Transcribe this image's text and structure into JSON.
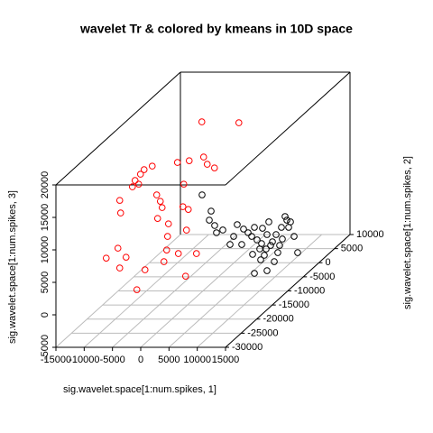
{
  "chart_data": {
    "type": "scatter3d",
    "title": "wavelet Tr & colored by kmeans in 10D space",
    "x_label": "sig.wavelet.space[1:num.spikes, 1]",
    "y_label": "sig.wavelet.space[1:num.spikes, 2]",
    "z_label": "sig.wavelet.space[1:num.spikes, 3]",
    "xlim": [
      -15000,
      15000
    ],
    "ylim": [
      -30000,
      10000
    ],
    "zlim": [
      -5000,
      20000
    ],
    "xticks": [
      -15000,
      -10000,
      -5000,
      0,
      5000,
      10000,
      15000
    ],
    "yticks": [
      -30000,
      -25000,
      -20000,
      -15000,
      -10000,
      -5000,
      0,
      5000,
      10000
    ],
    "zticks": [
      -5000,
      0,
      5000,
      10000,
      15000,
      20000
    ],
    "grid": true,
    "series": [
      {
        "color": "#ff0000",
        "x": [
          2550,
          9100,
          -1760,
          320,
          2870,
          3510,
          4790,
          -6220,
          -7660,
          -8300,
          -9260,
          -8620,
          -9730,
          -5430,
          -4790,
          -640,
          160,
          -11970,
          -11810,
          -4470,
          -5270,
          -800,
          -160,
          -3350,
          -3510,
          -12290,
          -14360,
          -10850,
          -11970,
          -3670,
          -4150,
          -1600,
          1600,
          -320,
          -8940,
          -7500
        ],
        "y": [
          -15000,
          -15000,
          -15000,
          -15000,
          -15000,
          -15000,
          -15000,
          -15000,
          -15000,
          -15000,
          -15000,
          -15000,
          -15000,
          -15000,
          -15000,
          -15000,
          -15000,
          -15000,
          -15000,
          -15000,
          -15000,
          -15000,
          -15000,
          -15000,
          -15000,
          -15000,
          -15000,
          -15000,
          -15000,
          -15000,
          -15000,
          -15000,
          -15000,
          -15000,
          -15000,
          -15000
        ],
        "z": [
          23200,
          23060,
          16950,
          17220,
          17780,
          16670,
          16110,
          16390,
          15840,
          15140,
          14170,
          13610,
          13200,
          11950,
          10970,
          13610,
          9720,
          11110,
          9170,
          10000,
          8330,
          10140,
          6530,
          7500,
          5560,
          3750,
          2220,
          2360,
          700,
          3470,
          1670,
          2920,
          2920,
          -560,
          -2640,
          420
        ]
      },
      {
        "color": "#000000",
        "x": [
          -160,
          1440,
          1120,
          2070,
          2390,
          3510,
          4790,
          6060,
          7180,
          7980,
          9100,
          8620,
          9570,
          10370,
          11330,
          10050,
          11970,
          10850,
          11650,
          12290,
          12930,
          13880,
          14520,
          14840,
          15160,
          15480,
          13560,
          12610,
          14040,
          16120,
          11330,
          9100,
          6860,
          5430,
          8780,
          11170,
          13240,
          10210,
          16750,
          10530
        ],
        "y": [
          -10000,
          -10000,
          -10000,
          -10000,
          -10000,
          -10000,
          -10000,
          -10000,
          -10000,
          -10000,
          -10000,
          -10000,
          -10000,
          -10000,
          -10000,
          -10000,
          -10000,
          -10000,
          -10000,
          -10000,
          -10000,
          -10000,
          -10000,
          -10000,
          -10000,
          -10000,
          -10000,
          -10000,
          -10000,
          -10000,
          -10000,
          -10000,
          -10000,
          -10000,
          -10000,
          -10000,
          -10000,
          -10000,
          -10000,
          -10000
        ],
        "z": [
          9790,
          7290,
          5900,
          5070,
          3960,
          4380,
          2150,
          5210,
          4520,
          3960,
          4790,
          3400,
          2850,
          2290,
          3680,
          1460,
          2010,
          490,
          5630,
          2570,
          3680,
          4790,
          6460,
          5900,
          4790,
          5630,
          2010,
          -490,
          2990,
          3400,
          -1880,
          -2290,
          2150,
          3400,
          630,
          1460,
          900,
          -210,
          900,
          4650
        ]
      }
    ]
  }
}
